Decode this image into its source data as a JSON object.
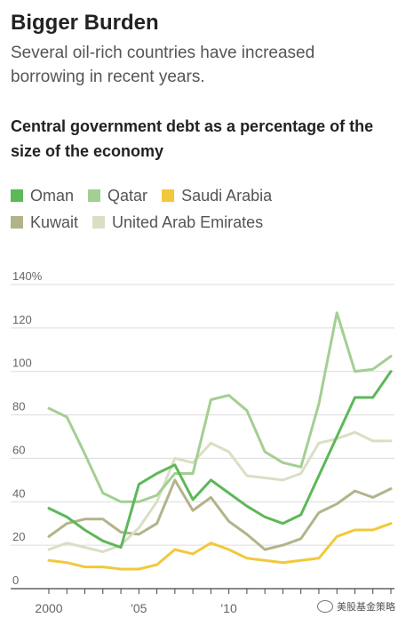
{
  "header": {
    "title": "Bigger Burden",
    "subtitle": "Several oil-rich countries have increased borrowing in recent years."
  },
  "watermark": {
    "text": "美股基金策略"
  },
  "chart_data": {
    "type": "line",
    "title": "Central government debt as a percentage of the size of the economy",
    "xlabel": "",
    "ylabel": "",
    "x": [
      2000,
      2001,
      2002,
      2003,
      2004,
      2005,
      2006,
      2007,
      2008,
      2009,
      2010,
      2011,
      2012,
      2013,
      2014,
      2015,
      2016,
      2017,
      2018,
      2019
    ],
    "x_tick_values": [
      2000,
      2005,
      2010
    ],
    "x_tick_labels": [
      "2000",
      "'05",
      "'10"
    ],
    "ylim": [
      0,
      140
    ],
    "y_ticks": [
      0,
      20,
      40,
      60,
      80,
      100,
      120,
      140
    ],
    "y_tick_labels": [
      "0",
      "20",
      "40",
      "60",
      "80",
      "100",
      "120",
      "140%"
    ],
    "grid": true,
    "legend_position": "top-left",
    "series": [
      {
        "name": "Kuwait",
        "color": "#b3b38a",
        "values": [
          24,
          30,
          32,
          32,
          26,
          25,
          30,
          50,
          36,
          42,
          31,
          25,
          18,
          20,
          23,
          35,
          39,
          45,
          42,
          46
        ]
      },
      {
        "name": "United Arab Emirates",
        "color": "#d9dfc4",
        "values": [
          18,
          21,
          19,
          17,
          20,
          28,
          40,
          60,
          58,
          67,
          63,
          52,
          51,
          50,
          53,
          67,
          69,
          72,
          68,
          68
        ]
      },
      {
        "name": "Qatar",
        "color": "#a3cf93",
        "values": [
          83,
          79,
          62,
          44,
          40,
          40,
          43,
          53,
          53,
          87,
          89,
          82,
          63,
          58,
          56,
          85,
          127,
          100,
          101,
          107
        ]
      },
      {
        "name": "Saudi Arabia",
        "color": "#f2c83a",
        "values": [
          13,
          12,
          10,
          10,
          9,
          9,
          11,
          18,
          16,
          21,
          18,
          14,
          13,
          12,
          13,
          14,
          24,
          27,
          27,
          30
        ]
      },
      {
        "name": "Oman",
        "color": "#5db858",
        "values": [
          37,
          33,
          27,
          22,
          19,
          48,
          53,
          57,
          41,
          50,
          44,
          38,
          33,
          30,
          34,
          52,
          70,
          88,
          88,
          100
        ]
      }
    ]
  },
  "legend": [
    [
      {
        "name": "Oman",
        "color": "#5db858"
      },
      {
        "name": "Qatar",
        "color": "#a3cf93"
      },
      {
        "name": "Saudi Arabia",
        "color": "#f2c83a"
      }
    ],
    [
      {
        "name": "Kuwait",
        "color": "#b3b38a"
      },
      {
        "name": "United Arab Emirates",
        "color": "#d9dfc4"
      }
    ]
  ]
}
